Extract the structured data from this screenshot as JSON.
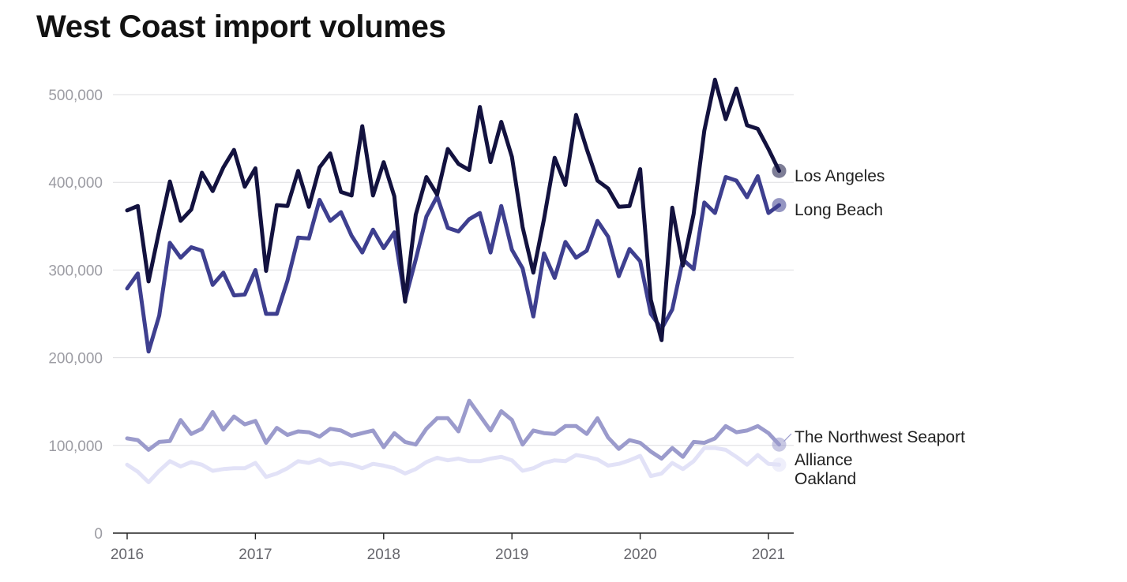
{
  "chart_data": {
    "type": "line",
    "title": "West Coast import volumes",
    "xlabel": "",
    "ylabel": "",
    "ylim": [
      0,
      560000
    ],
    "yticks": [
      0,
      100000,
      200000,
      300000,
      400000,
      500000
    ],
    "ytick_labels": [
      "0",
      "100,000",
      "200,000",
      "300,000",
      "400,000",
      "500,000"
    ],
    "xticks": [
      2016,
      2017,
      2018,
      2019,
      2020,
      2021
    ],
    "xtick_labels": [
      "2016",
      "2017",
      "2018",
      "2019",
      "2020",
      "2021"
    ],
    "x_start": "2016-01",
    "x_step": "month",
    "grid": true,
    "legend": "end-of-line labels",
    "series": [
      {
        "name": "Los Angeles",
        "color": "#13123f",
        "values": [
          368000,
          373000,
          287000,
          345000,
          401000,
          356000,
          369000,
          411000,
          390000,
          417000,
          437000,
          395000,
          416000,
          299000,
          374000,
          373000,
          413000,
          372000,
          417000,
          433000,
          389000,
          385000,
          464000,
          385000,
          423000,
          384000,
          264000,
          363000,
          406000,
          386000,
          438000,
          421000,
          414000,
          486000,
          423000,
          469000,
          429000,
          349000,
          297000,
          358000,
          428000,
          397000,
          477000,
          438000,
          402000,
          393000,
          372000,
          373000,
          415000,
          266000,
          220000,
          371000,
          305000,
          364000,
          459000,
          517000,
          472000,
          507000,
          465000,
          461000,
          438000,
          413000
        ]
      },
      {
        "name": "Long Beach",
        "color": "#3e3f8f",
        "values": [
          279000,
          296000,
          207000,
          248000,
          331000,
          314000,
          326000,
          322000,
          283000,
          297000,
          271000,
          272000,
          300000,
          250000,
          250000,
          288000,
          337000,
          336000,
          380000,
          356000,
          366000,
          339000,
          320000,
          346000,
          325000,
          343000,
          266000,
          312000,
          361000,
          384000,
          348000,
          344000,
          358000,
          365000,
          320000,
          373000,
          323000,
          302000,
          247000,
          319000,
          291000,
          332000,
          314000,
          322000,
          356000,
          338000,
          293000,
          324000,
          310000,
          250000,
          233000,
          255000,
          312000,
          301000,
          377000,
          365000,
          406000,
          402000,
          383000,
          407000,
          365000,
          374000
        ]
      },
      {
        "name": "The Northwest Seaport Alliance",
        "color": "#9b9bcc",
        "values": [
          108000,
          106000,
          95000,
          104000,
          105000,
          129000,
          113000,
          119000,
          138000,
          118000,
          133000,
          124000,
          128000,
          103000,
          120000,
          112000,
          116000,
          115000,
          110000,
          119000,
          117000,
          111000,
          114000,
          117000,
          98000,
          114000,
          104000,
          101000,
          119000,
          131000,
          131000,
          116000,
          151000,
          134000,
          117000,
          139000,
          129000,
          101000,
          117000,
          114000,
          113000,
          122000,
          122000,
          113000,
          131000,
          109000,
          96000,
          106000,
          103000,
          93000,
          85000,
          97000,
          87000,
          104000,
          103000,
          108000,
          122000,
          115000,
          117000,
          122000,
          114000,
          101000
        ]
      },
      {
        "name": "Oakland",
        "color": "#e2e2f7",
        "values": [
          78000,
          70000,
          58000,
          71000,
          82000,
          76000,
          81000,
          78000,
          71000,
          73000,
          74000,
          74000,
          80000,
          64000,
          68000,
          74000,
          82000,
          80000,
          84000,
          78000,
          80000,
          78000,
          74000,
          79000,
          77000,
          74000,
          68000,
          73000,
          81000,
          86000,
          83000,
          85000,
          82000,
          82000,
          85000,
          87000,
          83000,
          71000,
          74000,
          80000,
          83000,
          82000,
          89000,
          87000,
          84000,
          77000,
          79000,
          83000,
          88000,
          65000,
          68000,
          80000,
          73000,
          82000,
          97000,
          97000,
          95000,
          87000,
          78000,
          89000,
          79000,
          78000
        ]
      }
    ]
  }
}
